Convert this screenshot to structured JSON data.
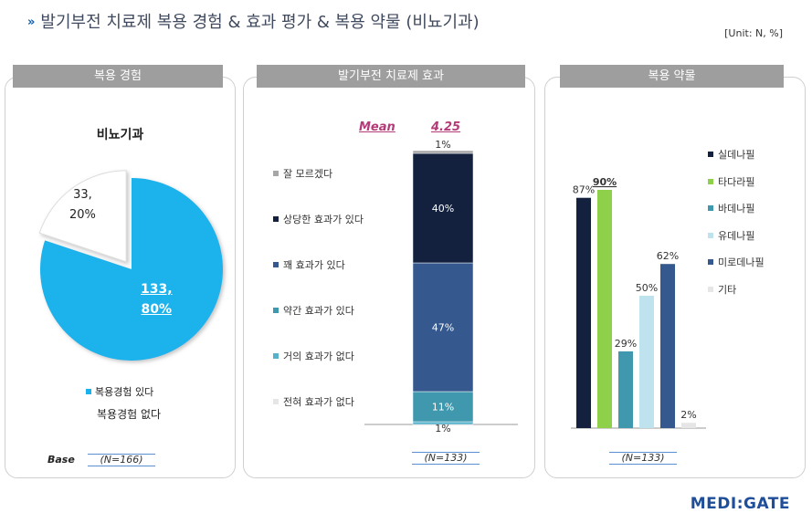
{
  "title": "발기부전 치료제 복용 경험 & 효과 평가 & 복용 약물 (비뇨기과)",
  "unit": "[Unit: N, %]",
  "panels": {
    "experience": {
      "tab": "복용 경험",
      "chart_title": "비뇨기과",
      "slices": [
        {
          "label_count": "133,",
          "label_pct": "80%",
          "value": 133,
          "pct": 80,
          "color": "#1ab2ec",
          "legend": "복용경험 있다"
        },
        {
          "label_count": "33,",
          "label_pct": "20%",
          "value": 33,
          "pct": 20,
          "color": "#ffffff",
          "legend": "복용경험 없다"
        }
      ],
      "base_label": "Base",
      "base_n": "(N=166)"
    },
    "effect": {
      "tab": "발기부전 치료제 효과",
      "mean_label": "Mean",
      "mean_value": "4.25",
      "n": "(N=133)",
      "legend": [
        {
          "label": "잘 모르겠다",
          "color": "#a6a6a6"
        },
        {
          "label": "상당한 효과가 있다",
          "color": "#13213f"
        },
        {
          "label": "꽤 효과가 있다",
          "color": "#35598f"
        },
        {
          "label": "약간 효과가 있다",
          "color": "#3f98ad"
        },
        {
          "label": "거의 효과가 없다",
          "color": "#56b2cc"
        },
        {
          "label": "전혀 효과가 없다",
          "color": "#e6e6e6"
        }
      ]
    },
    "drugs": {
      "tab": "복용 약물",
      "n": "(N=133)"
    }
  },
  "chart_data": [
    {
      "type": "pie",
      "title": "비뇨기과",
      "categories": [
        "복용경험 있다",
        "복용경험 없다"
      ],
      "values": [
        133,
        33
      ],
      "percent": [
        80,
        20
      ]
    },
    {
      "type": "bar",
      "stacked": true,
      "categories": [
        "전혀 효과가 없다",
        "거의 효과가 없다",
        "약간 효과가 있다",
        "꽤 효과가 있다",
        "상당한 효과가 있다",
        "잘 모르겠다"
      ],
      "values": [
        0,
        1,
        11,
        47,
        40,
        1
      ],
      "labels": [
        "",
        "1%",
        "11%",
        "47%",
        "40%",
        "1%"
      ],
      "colors": [
        "#e6e6e6",
        "#56b2cc",
        "#3f98ad",
        "#35598f",
        "#13213f",
        "#a6a6a6"
      ],
      "mean": 4.25
    },
    {
      "type": "bar",
      "categories": [
        "실데나필",
        "타다라필",
        "바데나필",
        "유데나필",
        "미로데나필",
        "기타"
      ],
      "values": [
        87,
        90,
        29,
        50,
        62,
        2
      ],
      "labels": [
        "87%",
        "90%",
        "29%",
        "50%",
        "62%",
        "2%"
      ],
      "colors": [
        "#13213f",
        "#8fd04a",
        "#3f98ad",
        "#bfe3ee",
        "#35598f",
        "#e6e6e6"
      ],
      "ylim": [
        0,
        100
      ]
    }
  ],
  "logo": "MEDI:GATE"
}
